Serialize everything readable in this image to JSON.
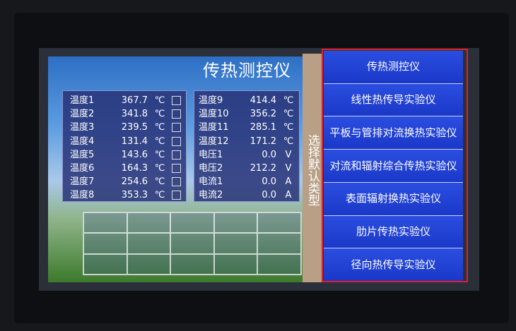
{
  "title": "传热测控仪",
  "left_readings": [
    {
      "label": "温度1",
      "value": "367.7",
      "unit": "℃"
    },
    {
      "label": "温度2",
      "value": "341.8",
      "unit": "℃"
    },
    {
      "label": "温度3",
      "value": "239.5",
      "unit": "℃"
    },
    {
      "label": "温度4",
      "value": "131.4",
      "unit": "℃"
    },
    {
      "label": "温度5",
      "value": "143.6",
      "unit": "℃"
    },
    {
      "label": "温度6",
      "value": "164.3",
      "unit": "℃"
    },
    {
      "label": "温度7",
      "value": "254.6",
      "unit": "℃"
    },
    {
      "label": "温度8",
      "value": "353.3",
      "unit": "℃"
    }
  ],
  "right_readings": [
    {
      "label": "温度9",
      "value": "414.4",
      "unit": "℃"
    },
    {
      "label": "温度10",
      "value": "356.2",
      "unit": "℃"
    },
    {
      "label": "温度11",
      "value": "285.1",
      "unit": "℃"
    },
    {
      "label": "温度12",
      "value": "171.2",
      "unit": "℃"
    },
    {
      "label": "电压1",
      "value": "0.0",
      "unit": "V"
    },
    {
      "label": "电压2",
      "value": "212.2",
      "unit": "V"
    },
    {
      "label": "电流1",
      "value": "0.0",
      "unit": "A"
    },
    {
      "label": "电流2",
      "value": "0.0",
      "unit": "A"
    }
  ],
  "select_label": "选择默认类型",
  "menu": [
    "传热测控仪",
    "线性热传导实验仪",
    "平板与管排对流换热实验仪",
    "对流和辐射综合传热实验仪",
    "表面辐射换热实验仪",
    "肋片传热实验仪",
    "径向热传导实验仪"
  ],
  "colors": {
    "menu_bg": "#1d3fd6",
    "highlight": "#e0202a",
    "strip": "#b89f86"
  }
}
